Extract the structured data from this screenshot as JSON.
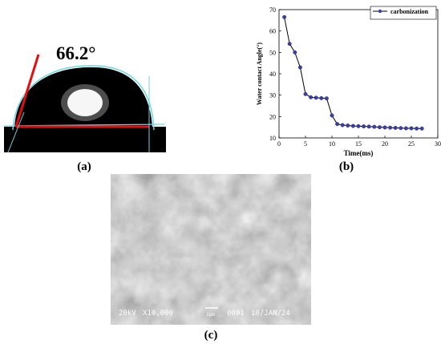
{
  "panels": {
    "a": {
      "angle_label": "66.2°",
      "caption": "(a)"
    },
    "b": {
      "caption": "(b)"
    },
    "c": {
      "caption": "(c)",
      "info": [
        "20kV",
        "X10,000",
        "1μm",
        "0001",
        "10/JAN/24"
      ]
    }
  },
  "chart_data": {
    "type": "line",
    "xlabel": "Time(ms)",
    "ylabel": "Water contact Angle(°)",
    "x": [
      1,
      2,
      3,
      4,
      5,
      6,
      7,
      8,
      9,
      10,
      11,
      12,
      13,
      14,
      15,
      16,
      17,
      18,
      19,
      20,
      21,
      22,
      23,
      24,
      25,
      26,
      27
    ],
    "series": [
      {
        "name": "carbonization",
        "color": "#3b3fb0",
        "values": [
          66.5,
          54,
          50,
          43,
          30.5,
          29,
          28.8,
          28.6,
          28.5,
          20.5,
          16.5,
          16,
          15.8,
          15.6,
          15.5,
          15.4,
          15.3,
          15.2,
          15,
          14.9,
          14.8,
          14.7,
          14.6,
          14.5,
          14.5,
          14.4,
          14.4
        ]
      }
    ],
    "xlim": [
      0,
      30
    ],
    "xticks": [
      0,
      5,
      10,
      15,
      20,
      25,
      30
    ],
    "ylim": [
      10,
      70
    ],
    "yticks": [
      10,
      20,
      30,
      40,
      50,
      60,
      70
    ],
    "legend": "upper right"
  }
}
